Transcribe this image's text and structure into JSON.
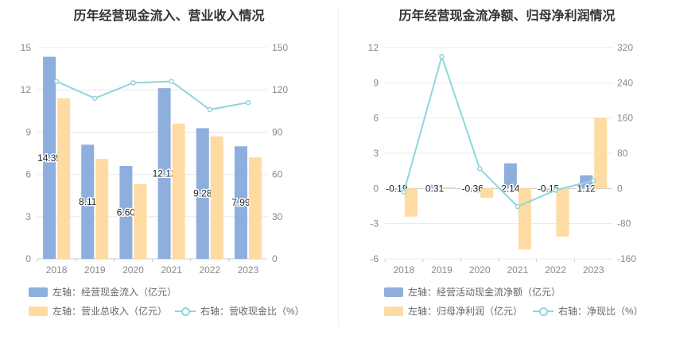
{
  "colors": {
    "bar_blue": "#8eaedd",
    "bar_orange": "#fddba2",
    "line": "#8fd6dc"
  },
  "chart_data": [
    {
      "type": "bar",
      "title": "历年经营现金流入、营业收入情况",
      "categories": [
        "2018",
        "2019",
        "2020",
        "2021",
        "2022",
        "2023"
      ],
      "left_axis": {
        "ticks": [
          "0",
          "3",
          "6",
          "9",
          "12",
          "15"
        ],
        "ylim": [
          0,
          15
        ]
      },
      "right_axis": {
        "ticks": [
          "0",
          "30",
          "60",
          "90",
          "120",
          "150"
        ],
        "ylim": [
          0,
          150
        ]
      },
      "series": [
        {
          "name": "左轴：经营现金流入（亿元）",
          "type": "bar",
          "axis": "left",
          "color": "#8eaedd",
          "values": [
            14.35,
            8.11,
            6.6,
            12.12,
            9.28,
            7.99
          ],
          "labels": [
            "14.35",
            "8.11",
            "6.60",
            "12.12",
            "9.28",
            "7.99"
          ]
        },
        {
          "name": "左轴：营业总收入（亿元）",
          "type": "bar",
          "axis": "left",
          "color": "#fddba2",
          "values": [
            11.4,
            7.1,
            5.3,
            9.6,
            8.7,
            7.2
          ]
        },
        {
          "name": "右轴：营收现金比（%）",
          "type": "line",
          "axis": "right",
          "color": "#8fd6dc",
          "values": [
            126,
            114,
            125,
            126,
            106,
            111
          ]
        }
      ],
      "legend": [
        "左轴：经营现金流入（亿元）",
        "左轴：营业总收入（亿元）",
        "右轴：营收现金比（%）"
      ]
    },
    {
      "type": "bar",
      "title": "历年经营现金流净额、归母净利润情况",
      "categories": [
        "2018",
        "2019",
        "2020",
        "2021",
        "2022",
        "2023"
      ],
      "left_axis": {
        "ticks": [
          "-6",
          "-3",
          "0",
          "3",
          "6",
          "9",
          "12"
        ],
        "ylim": [
          -6,
          12
        ]
      },
      "right_axis": {
        "ticks": [
          "-160",
          "-80",
          "0",
          "80",
          "160",
          "240",
          "320"
        ],
        "ylim": [
          -160,
          320
        ]
      },
      "series": [
        {
          "name": "左轴：经营活动现金流净额（亿元）",
          "type": "bar",
          "axis": "left",
          "color": "#8eaedd",
          "values": [
            -0.19,
            0.31,
            -0.36,
            2.14,
            -0.15,
            1.12
          ],
          "labels": [
            "-0.19",
            "0.31",
            "-0.36",
            "2.14",
            "-0.15",
            "1.12"
          ]
        },
        {
          "name": "左轴：归母净利润（亿元）",
          "type": "bar",
          "axis": "left",
          "color": "#fddba2",
          "values": [
            -2.4,
            0.1,
            -0.8,
            -5.2,
            -4.1,
            6.0
          ]
        },
        {
          "name": "右轴：净现比（%）",
          "type": "line",
          "axis": "right",
          "color": "#8fd6dc",
          "values": [
            -8,
            300,
            45,
            -41,
            -4,
            18
          ]
        }
      ],
      "legend": [
        "左轴：经营活动现金流净额（亿元）",
        "左轴：归母净利润（亿元）",
        "右轴：净现比（%）"
      ]
    }
  ]
}
